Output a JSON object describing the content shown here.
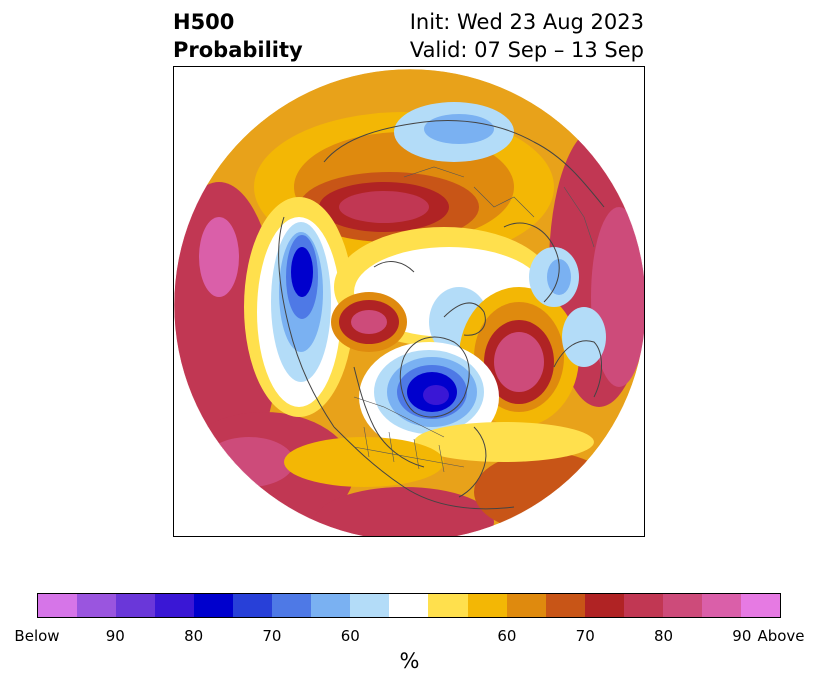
{
  "title": {
    "left_line1": "H500",
    "left_line2": "Probability",
    "right_line1": "Init: Wed 23 Aug 2023",
    "right_line2": "Valid: 07 Sep – 13 Sep"
  },
  "colorbar": {
    "colors": [
      "#d675e8",
      "#9a55df",
      "#6a37d9",
      "#3a17d5",
      "#0000cd",
      "#2840d8",
      "#4e79e6",
      "#7ab1f2",
      "#b3dcf8",
      "#ffffff",
      "#ffe04d",
      "#f3b705",
      "#df8a0e",
      "#c85517",
      "#b02324",
      "#c13753",
      "#cd4b7a",
      "#da5fa9",
      "#e67ae3"
    ],
    "ticks": [
      "Below",
      "90",
      "80",
      "70",
      "60",
      "60",
      "70",
      "80",
      "90",
      "Above"
    ],
    "label": "%"
  },
  "map": {
    "projection": "north polar stereographic",
    "categories": [
      "below-normal",
      "above-normal"
    ]
  }
}
